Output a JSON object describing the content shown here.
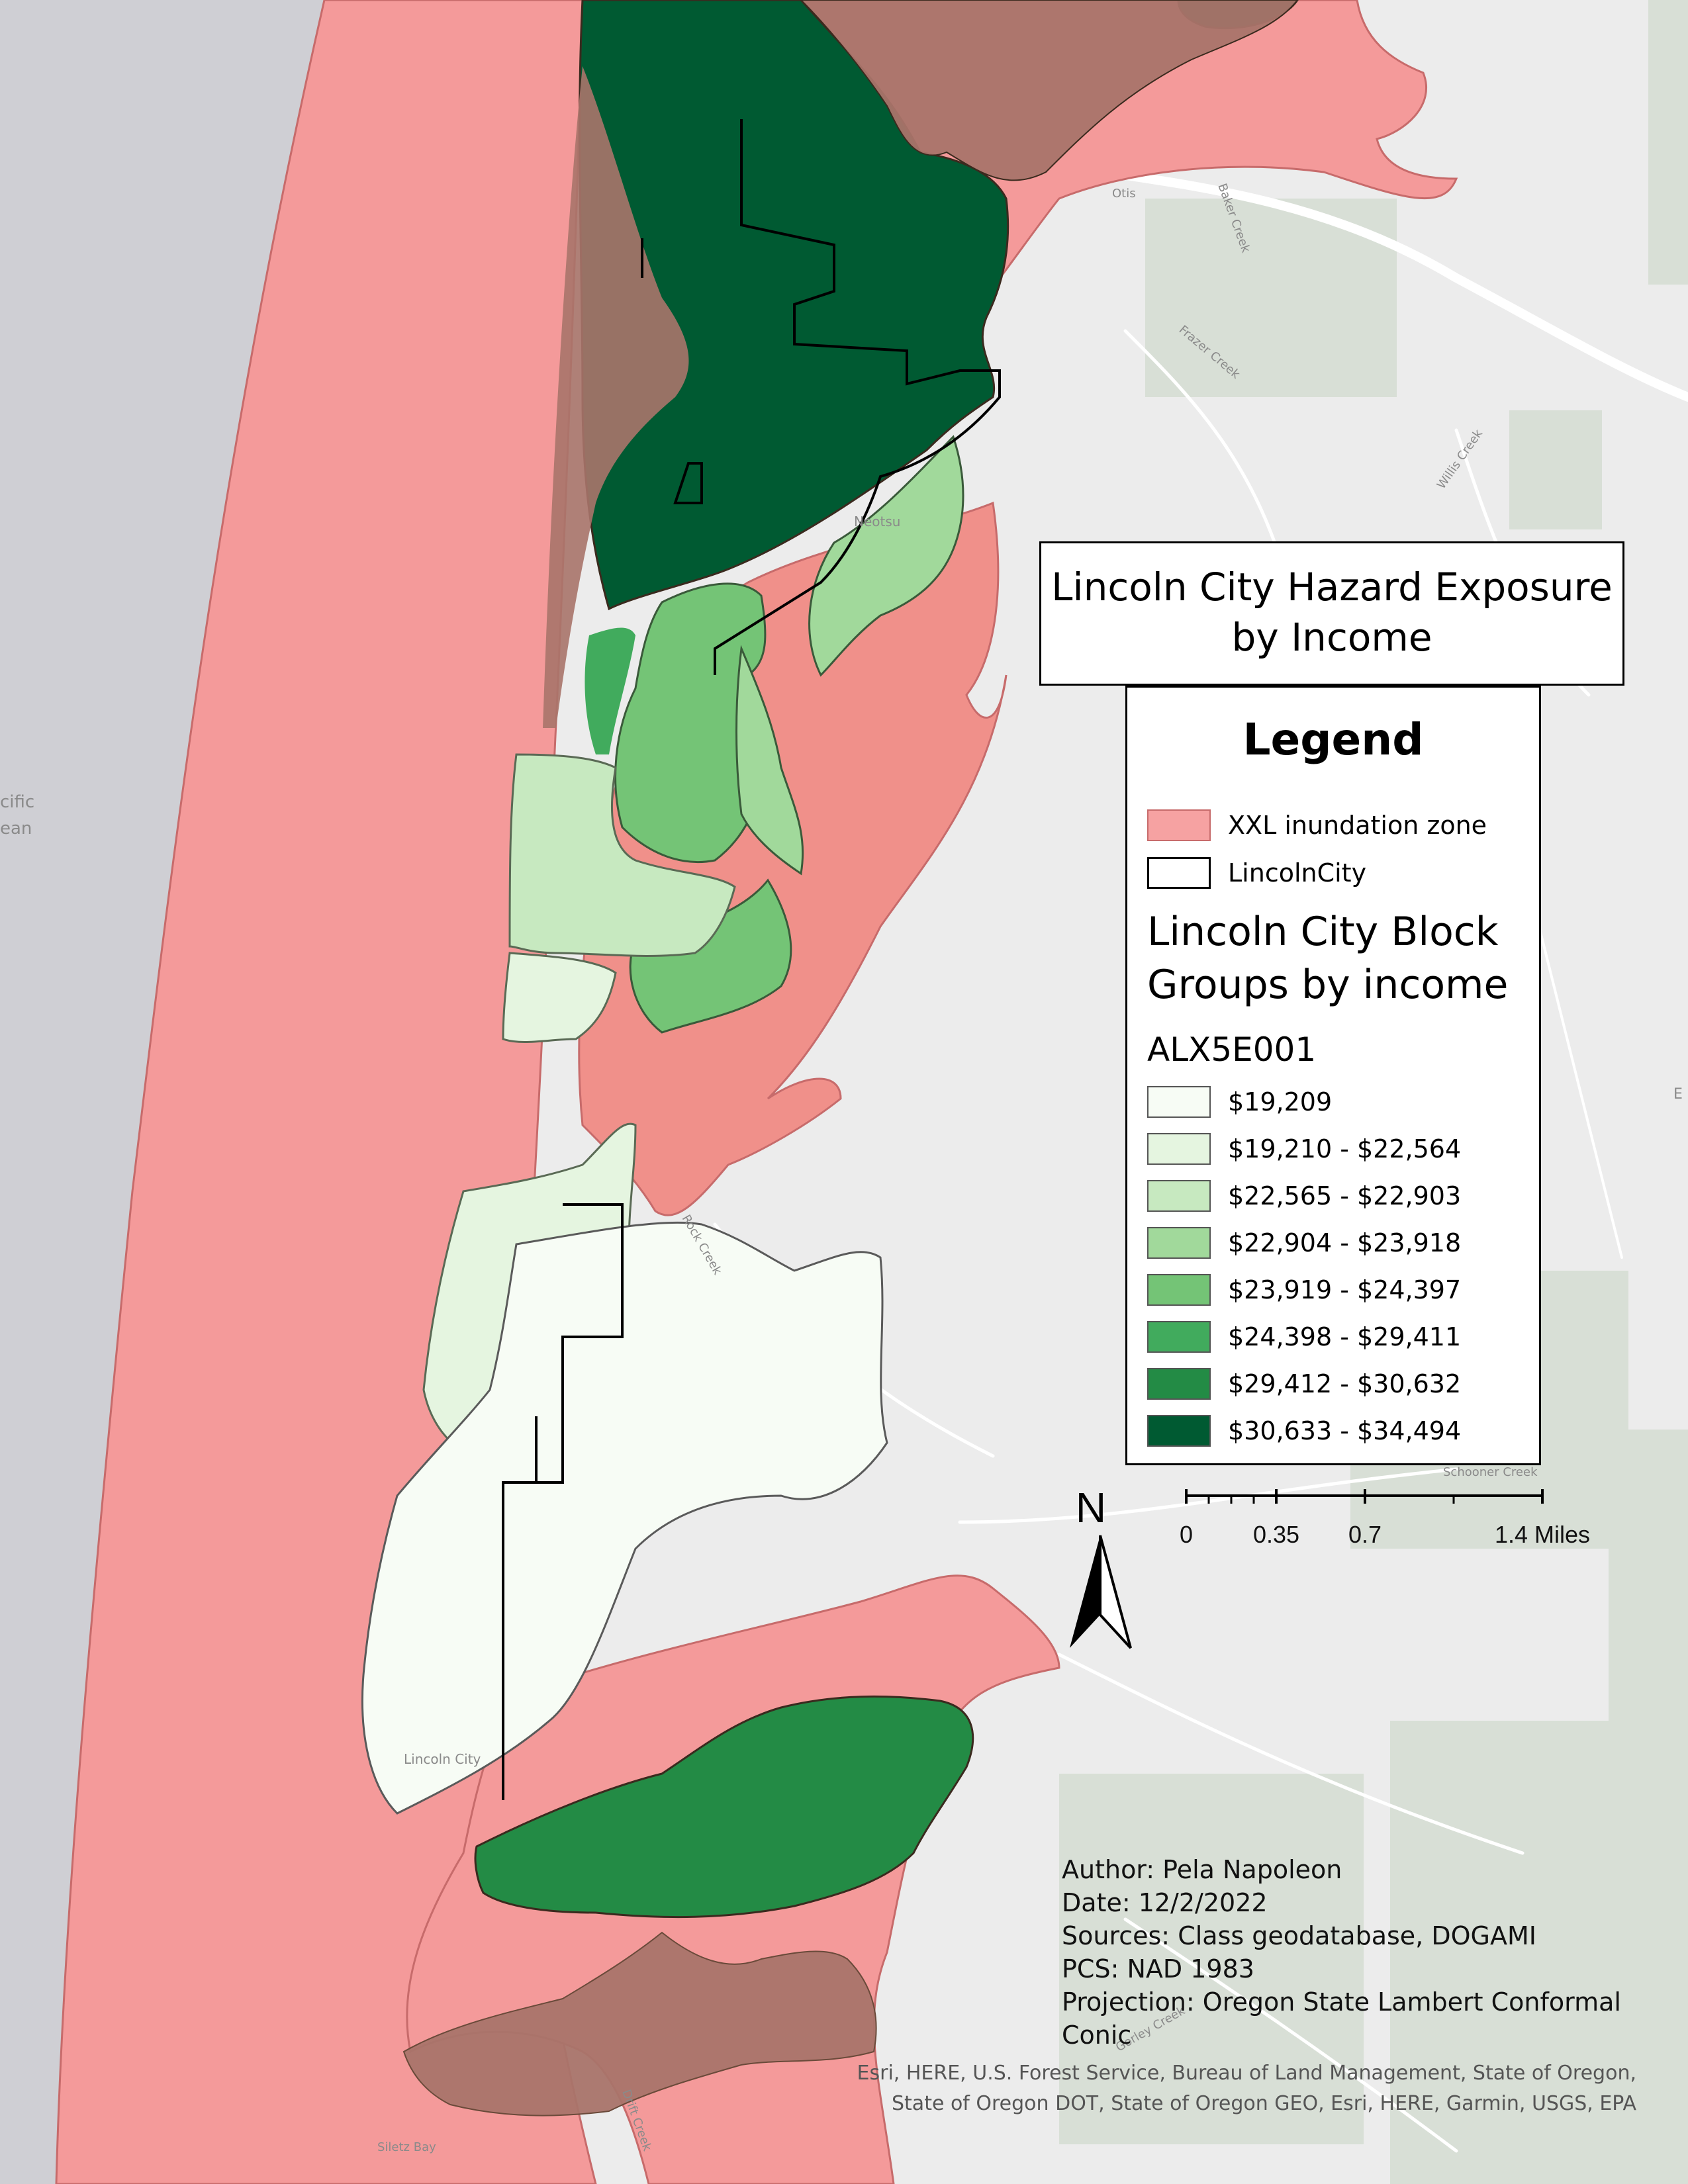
{
  "title": {
    "line1": "Lincoln City Hazard Exposure",
    "line2": "by Income"
  },
  "legend": {
    "heading": "Legend",
    "layers": [
      {
        "label": "XXL inundation zone",
        "color": "#f6a2a2",
        "border": "#c76b6b"
      },
      {
        "label": "LincolnCity",
        "color": "#ffffff",
        "border": "#000000"
      }
    ],
    "group_title_line1": "Lincoln City Block",
    "group_title_line2": "Groups by income",
    "field": "ALX5E001",
    "classes": [
      {
        "label": "$19,209",
        "color": "#f7fcf5"
      },
      {
        "label": "$19,210 - $22,564",
        "color": "#e5f5e0"
      },
      {
        "label": "$22,565 - $22,903",
        "color": "#c7e9c0"
      },
      {
        "label": "$22,904 - $23,918",
        "color": "#a1d99b"
      },
      {
        "label": "$23,919 - $24,397",
        "color": "#74c476"
      },
      {
        "label": "$24,398 - $29,411",
        "color": "#41ab5d"
      },
      {
        "label": "$29,412 - $30,632",
        "color": "#238b45"
      },
      {
        "label": "$30,633 - $34,494",
        "color": "#005a32"
      }
    ]
  },
  "scale_bar": {
    "ticks": [
      "0",
      "0.35",
      "0.7",
      "1.4 Miles"
    ]
  },
  "north_arrow": {
    "label": "N",
    "icon": "north-arrow-icon"
  },
  "author_block": {
    "author": "Author: Pela Napoleon",
    "date": "Date: 12/2/2022",
    "sources": "Sources: Class geodatabase, DOGAMI",
    "pcs": "PCS: NAD 1983",
    "projection_line1": "Projection: Oregon State Lambert Conformal",
    "projection_line2": "Conic"
  },
  "credits": {
    "line1": "Esri, HERE, U.S. Forest Service, Bureau of Land Management, State of Oregon,",
    "line2": "State of Oregon DOT, State of Oregon GEO, Esri, HERE, Garmin, USGS, EPA"
  },
  "basemap_labels": {
    "ocean_1": "cific",
    "ocean_2": "ean",
    "place_neotsu": "Neotsu",
    "place_lincoln_city": "Lincoln City",
    "bay": "Siletz Bay",
    "creek_frazer": "Frazer Creek",
    "creek_willis": "Willis Creek",
    "creek_baker": "Baker Creek",
    "creek_gorley": "Gorley Creek",
    "creek_schooner": "Schooner Creek",
    "creek_rock": "Rock Creek",
    "creek_drift": "Drift Creek",
    "place_otis": "Otis",
    "edge_e": "E"
  },
  "colors": {
    "ocean": "#cfcfd4",
    "land": "#ececec",
    "forest": "#d7ded5",
    "road": "#ffffff",
    "inundation": "#f49a9a",
    "inundation_overlap": "#a9746a",
    "city_outline": "#000000"
  }
}
